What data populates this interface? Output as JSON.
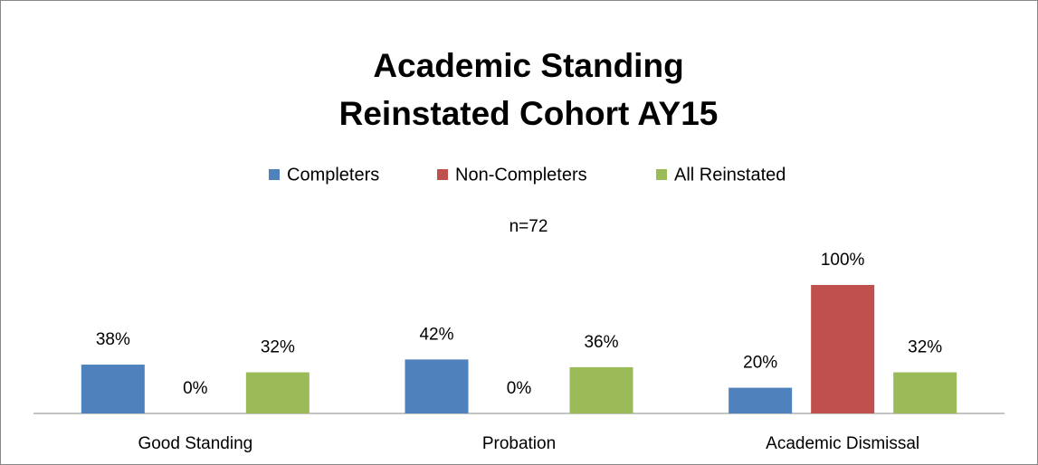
{
  "chart_data": {
    "type": "bar",
    "title": [
      "Academic Standing",
      "Reinstated Cohort AY15"
    ],
    "subtitle": "n=72",
    "categories": [
      "Good Standing",
      "Probation",
      "Academic Dismissal"
    ],
    "series": [
      {
        "name": "Completers",
        "color": "#4f81bd",
        "values": [
          38,
          42,
          20
        ],
        "value_labels": [
          "38%",
          "42%",
          "20%"
        ]
      },
      {
        "name": "Non-Completers",
        "color": "#c0504d",
        "values": [
          0,
          0,
          100
        ],
        "value_labels": [
          "0%",
          "0%",
          "100%"
        ]
      },
      {
        "name": "All Reinstated",
        "color": "#9bbb59",
        "values": [
          32,
          36,
          32
        ],
        "value_labels": [
          "32%",
          "36%",
          "32%"
        ]
      }
    ],
    "legend": "top"
  }
}
